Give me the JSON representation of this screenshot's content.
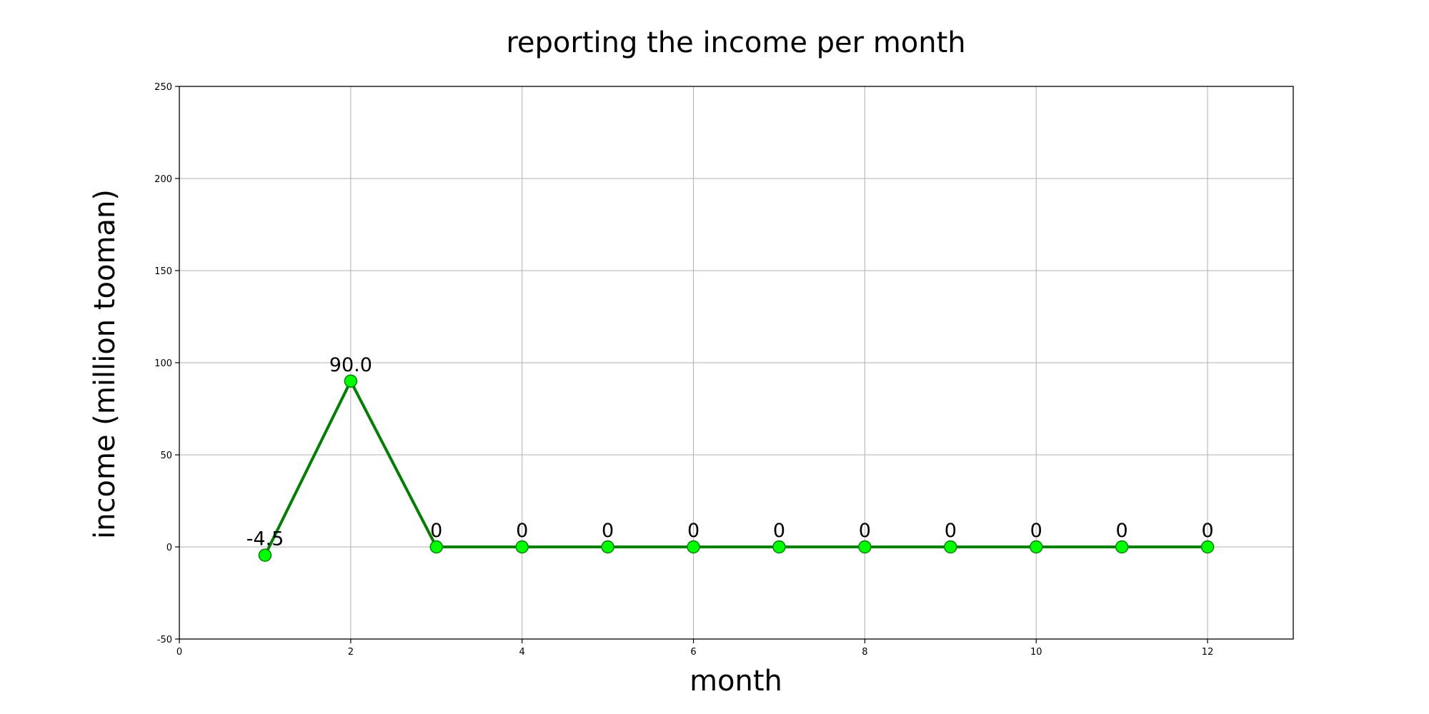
{
  "chart_data": {
    "type": "line",
    "title": "reporting the income per month",
    "xlabel": "month",
    "ylabel": "income (million tooman)",
    "xlim": [
      0,
      13
    ],
    "ylim": [
      -50,
      250
    ],
    "xticks": [
      0,
      2,
      4,
      6,
      8,
      10,
      12
    ],
    "yticks": [
      -50,
      0,
      50,
      100,
      150,
      200,
      250
    ],
    "grid": true,
    "legend": "none",
    "line_color": "#008000",
    "marker_fill": "#00ff00",
    "marker_edge": "#008000",
    "series": [
      {
        "x": [
          1,
          2,
          3,
          4,
          5,
          6,
          7,
          8,
          9,
          10,
          11,
          12
        ],
        "y": [
          -4.5,
          90.0,
          0,
          0,
          0,
          0,
          0,
          0,
          0,
          0,
          0,
          0
        ],
        "labels": [
          "-4.5",
          "90.0",
          "0",
          "0",
          "0",
          "0",
          "0",
          "0",
          "0",
          "0",
          "0",
          "0"
        ]
      }
    ]
  }
}
